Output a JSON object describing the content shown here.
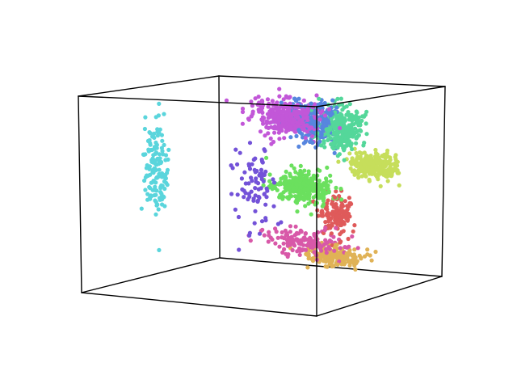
{
  "chart_data": {
    "type": "scatter",
    "title": "",
    "projection": "3d",
    "axes_visible": false,
    "grid": false,
    "box": "wireframe",
    "marker": "circle",
    "series": [
      {
        "color": "#5ad5dc",
        "centroid": [
          0.06,
          0.45,
          0.56
        ],
        "spread": [
          0.025,
          0.02,
          0.12
        ],
        "count": 140
      },
      {
        "color": "#c257d8",
        "centroid": [
          0.42,
          0.79,
          0.8
        ],
        "spread": [
          0.07,
          0.02,
          0.045
        ],
        "count": 340
      },
      {
        "color": "#5786df",
        "centroid": [
          0.51,
          0.82,
          0.79
        ],
        "spread": [
          0.045,
          0.02,
          0.05
        ],
        "count": 300
      },
      {
        "color": "#54d79a",
        "centroid": [
          0.62,
          0.84,
          0.75
        ],
        "spread": [
          0.04,
          0.025,
          0.06
        ],
        "count": 300
      },
      {
        "color": "#7352d8",
        "centroid": [
          0.43,
          0.54,
          0.5
        ],
        "spread": [
          0.05,
          0.04,
          0.1
        ],
        "count": 80
      },
      {
        "color": "#6be05e",
        "centroid": [
          0.52,
          0.73,
          0.47
        ],
        "spread": [
          0.06,
          0.025,
          0.04
        ],
        "count": 300
      },
      {
        "color": "#c6de5b",
        "centroid": [
          0.71,
          0.92,
          0.57
        ],
        "spread": [
          0.05,
          0.02,
          0.035
        ],
        "count": 260
      },
      {
        "color": "#df5a5a",
        "centroid": [
          0.64,
          0.77,
          0.33
        ],
        "spread": [
          0.03,
          0.03,
          0.05
        ],
        "count": 150
      },
      {
        "color": "#e0b256",
        "centroid": [
          0.64,
          0.74,
          0.13
        ],
        "spread": [
          0.06,
          0.03,
          0.025
        ],
        "count": 180
      },
      {
        "color": "#d858a8",
        "centroid": [
          0.55,
          0.68,
          0.2
        ],
        "spread": [
          0.08,
          0.03,
          0.035
        ],
        "count": 150
      }
    ]
  }
}
